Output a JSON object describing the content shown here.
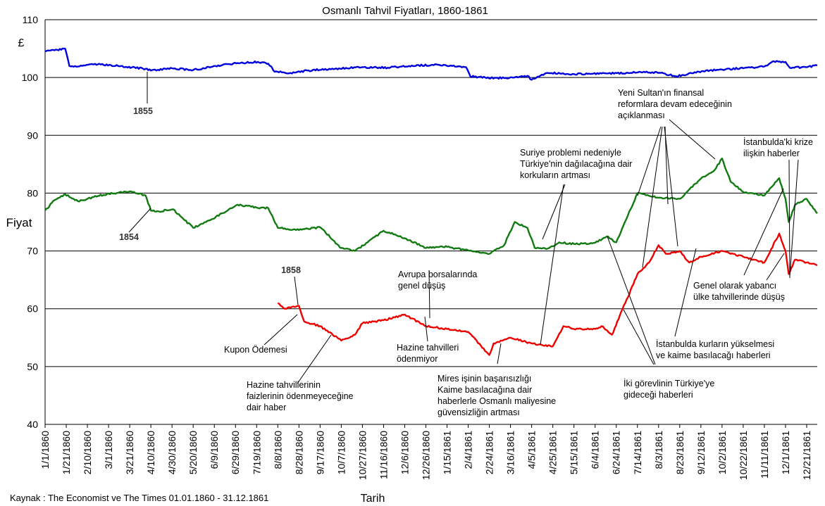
{
  "chart_data": {
    "type": "line",
    "title": "Osmanlı Tahvil Fiyatları, 1860-1861",
    "xlabel": "Tarih",
    "ylabel": "Fiyat",
    "unit_label": "£",
    "source": "Kaynak : The Economist ve The Times 01.01.1860 - 31.12.1861",
    "ylim": [
      40,
      110
    ],
    "yticks": [
      40,
      50,
      60,
      70,
      80,
      90,
      100,
      110
    ],
    "grid": "horizontal",
    "x_start": "1860-01-01",
    "x_end": "1861-12-31",
    "x_tick_labels": [
      "1/1/1860",
      "1/21/1860",
      "2/10/1860",
      "3/1/1860",
      "3/21/1860",
      "4/10/1860",
      "4/30/1860",
      "5/20/1860",
      "6/9/1860",
      "6/29/1860",
      "7/19/1860",
      "8/8/1860",
      "8/28/1860",
      "9/17/1860",
      "10/7/1860",
      "10/27/1860",
      "11/16/1860",
      "12/6/1860",
      "12/26/1860",
      "1/15/1861",
      "2/4/1861",
      "2/24/1861",
      "3/16/1861",
      "4/5/1861",
      "4/25/1861",
      "5/15/1861",
      "6/4/1861",
      "6/24/1861",
      "7/14/1861",
      "8/3/1861",
      "8/23/1861",
      "9/12/1861",
      "10/2/1861",
      "10/22/1861",
      "11/11/1861",
      "12/1/1861",
      "12/21/1861"
    ],
    "series": [
      {
        "name": "1855",
        "color": "#0000dd",
        "x": [
          "1860-01-01",
          "1860-01-10",
          "1860-01-20",
          "1860-01-24",
          "1860-02-01",
          "1860-02-20",
          "1860-03-10",
          "1860-04-05",
          "1860-04-10",
          "1860-04-30",
          "1860-05-20",
          "1860-06-10",
          "1860-07-01",
          "1860-07-20",
          "1860-07-30",
          "1860-08-05",
          "1860-08-20",
          "1860-09-10",
          "1860-10-01",
          "1860-10-27",
          "1860-11-20",
          "1860-12-10",
          "1861-01-01",
          "1861-01-20",
          "1861-02-02",
          "1861-02-06",
          "1861-02-20",
          "1861-03-10",
          "1861-04-01",
          "1861-04-05",
          "1861-04-20",
          "1861-05-15",
          "1861-06-10",
          "1861-07-05",
          "1861-07-20",
          "1861-08-05",
          "1861-08-20",
          "1861-09-10",
          "1861-10-01",
          "1861-10-22",
          "1861-11-11",
          "1861-11-20",
          "1861-12-01",
          "1861-12-05",
          "1861-12-20",
          "1861-12-31"
        ],
        "values": [
          104.5,
          104.7,
          105.0,
          102.0,
          101.9,
          102.3,
          102.0,
          101.5,
          101.2,
          101.6,
          101.3,
          102.0,
          102.5,
          102.7,
          102.4,
          101.0,
          100.8,
          101.3,
          101.5,
          101.8,
          101.7,
          102.0,
          102.2,
          102.0,
          101.8,
          100.2,
          100.0,
          99.9,
          100.3,
          99.6,
          100.8,
          100.6,
          100.7,
          100.8,
          101.0,
          100.8,
          100.2,
          101.0,
          101.4,
          101.6,
          101.9,
          102.8,
          102.7,
          101.7,
          101.8,
          102.1
        ]
      },
      {
        "name": "1854",
        "color": "#117a11",
        "x": [
          "1860-01-01",
          "1860-01-10",
          "1860-01-20",
          "1860-02-01",
          "1860-02-20",
          "1860-03-01",
          "1860-03-21",
          "1860-04-05",
          "1860-04-10",
          "1860-04-15",
          "1860-05-01",
          "1860-05-20",
          "1860-06-01",
          "1860-06-20",
          "1860-07-01",
          "1860-07-19",
          "1860-07-30",
          "1860-08-08",
          "1860-08-28",
          "1860-09-17",
          "1860-10-07",
          "1860-10-20",
          "1860-11-01",
          "1860-11-16",
          "1860-12-06",
          "1860-12-26",
          "1861-01-10",
          "1861-02-01",
          "1861-02-24",
          "1861-03-10",
          "1861-03-20",
          "1861-04-01",
          "1861-04-08",
          "1861-04-20",
          "1861-05-01",
          "1861-05-15",
          "1861-06-04",
          "1861-06-15",
          "1861-06-24",
          "1861-07-01",
          "1861-07-14",
          "1861-08-03",
          "1861-08-23",
          "1861-09-12",
          "1861-09-25",
          "1861-10-02",
          "1861-10-10",
          "1861-10-22",
          "1861-11-11",
          "1861-11-25",
          "1861-12-01",
          "1861-12-04",
          "1861-12-10",
          "1861-12-21",
          "1861-12-31"
        ],
        "values": [
          77.0,
          78.8,
          79.8,
          78.6,
          79.5,
          79.9,
          80.3,
          79.6,
          77.0,
          76.8,
          77.2,
          74.0,
          75.0,
          76.8,
          78.0,
          77.5,
          77.4,
          74.0,
          73.6,
          74.1,
          70.5,
          70.0,
          71.5,
          73.5,
          72.2,
          70.5,
          70.8,
          70.2,
          69.5,
          71.0,
          75.0,
          74.0,
          70.5,
          70.4,
          71.5,
          71.2,
          71.4,
          72.5,
          71.5,
          74.5,
          80.0,
          79.2,
          79.0,
          82.5,
          84.0,
          86.0,
          82.0,
          80.2,
          79.6,
          82.6,
          79.0,
          75.0,
          78.0,
          79.0,
          76.5
        ]
      },
      {
        "name": "1858",
        "color": "#ee0000",
        "x": [
          "1860-08-08",
          "1860-08-15",
          "1860-08-28",
          "1860-09-02",
          "1860-09-17",
          "1860-10-07",
          "1860-10-20",
          "1860-10-27",
          "1860-11-16",
          "1860-12-06",
          "1860-12-26",
          "1861-01-15",
          "1861-02-04",
          "1861-02-24",
          "1861-02-28",
          "1861-03-16",
          "1861-04-05",
          "1861-04-25",
          "1861-05-05",
          "1861-05-15",
          "1861-06-04",
          "1861-06-10",
          "1861-06-20",
          "1861-06-30",
          "1861-07-05",
          "1861-07-14",
          "1861-07-25",
          "1861-08-03",
          "1861-08-10",
          "1861-08-23",
          "1861-09-01",
          "1861-09-12",
          "1861-10-02",
          "1861-10-22",
          "1861-11-11",
          "1861-11-25",
          "1861-12-01",
          "1861-12-04",
          "1861-12-10",
          "1861-12-21",
          "1861-12-31"
        ],
        "values": [
          61.0,
          60.0,
          60.5,
          57.8,
          57.0,
          54.5,
          55.5,
          57.5,
          58.0,
          59.0,
          57.0,
          56.5,
          56.0,
          52.0,
          54.0,
          55.0,
          54.0,
          53.5,
          57.0,
          56.5,
          56.5,
          57.0,
          55.5,
          60.0,
          62.0,
          66.0,
          68.0,
          71.0,
          69.5,
          70.0,
          68.0,
          69.0,
          70.0,
          69.0,
          68.0,
          73.0,
          70.0,
          66.0,
          68.5,
          68.0,
          67.5
        ]
      }
    ],
    "series_labels": [
      "1855",
      "1854",
      "1858"
    ]
  },
  "annotations": [
    {
      "id": "kupon",
      "lines": [
        "Kupon Ödemesi"
      ]
    },
    {
      "id": "hazine-faiz",
      "lines": [
        "Hazine tahvillerinin",
        "faizlerinin ödenmeyeceğine",
        "dair haber"
      ]
    },
    {
      "id": "avrupa",
      "lines": [
        "Avrupa borsalarında",
        "genel düşüş"
      ]
    },
    {
      "id": "hazine-odenmiyor",
      "lines": [
        "Hazine tahvilleri",
        "ödenmiyor"
      ]
    },
    {
      "id": "mires",
      "lines": [
        "Mires işinin başarısızlığı",
        "Kaime basılacağına dair",
        "haberlerle Osmanlı maliyesine",
        "güvensizliğin artması"
      ]
    },
    {
      "id": "suriye",
      "lines": [
        "Suriye problemi nedeniyle",
        "Türkiye'nin dağılacağına dair",
        "korkuların artması"
      ]
    },
    {
      "id": "yeni-sultan",
      "lines": [
        "Yeni Sultan'ın finansal",
        "reformlara devam edeceğinin",
        "açıklanması"
      ]
    },
    {
      "id": "istanbul-kriz",
      "lines": [
        "İstanbulda'ki krize",
        "ilişkin haberler"
      ]
    },
    {
      "id": "genel-yabanci",
      "lines": [
        "Genel olarak yabancı",
        "ülke tahvillerinde düşüş"
      ]
    },
    {
      "id": "istanbul-kur",
      "lines": [
        "İstanbulda kurların yükselmesi",
        "ve kaime basılacağı haberleri"
      ]
    },
    {
      "id": "iki-gorevli",
      "lines": [
        "İki görevlinin Türkiye'ye",
        "gideceği haberleri"
      ]
    }
  ]
}
